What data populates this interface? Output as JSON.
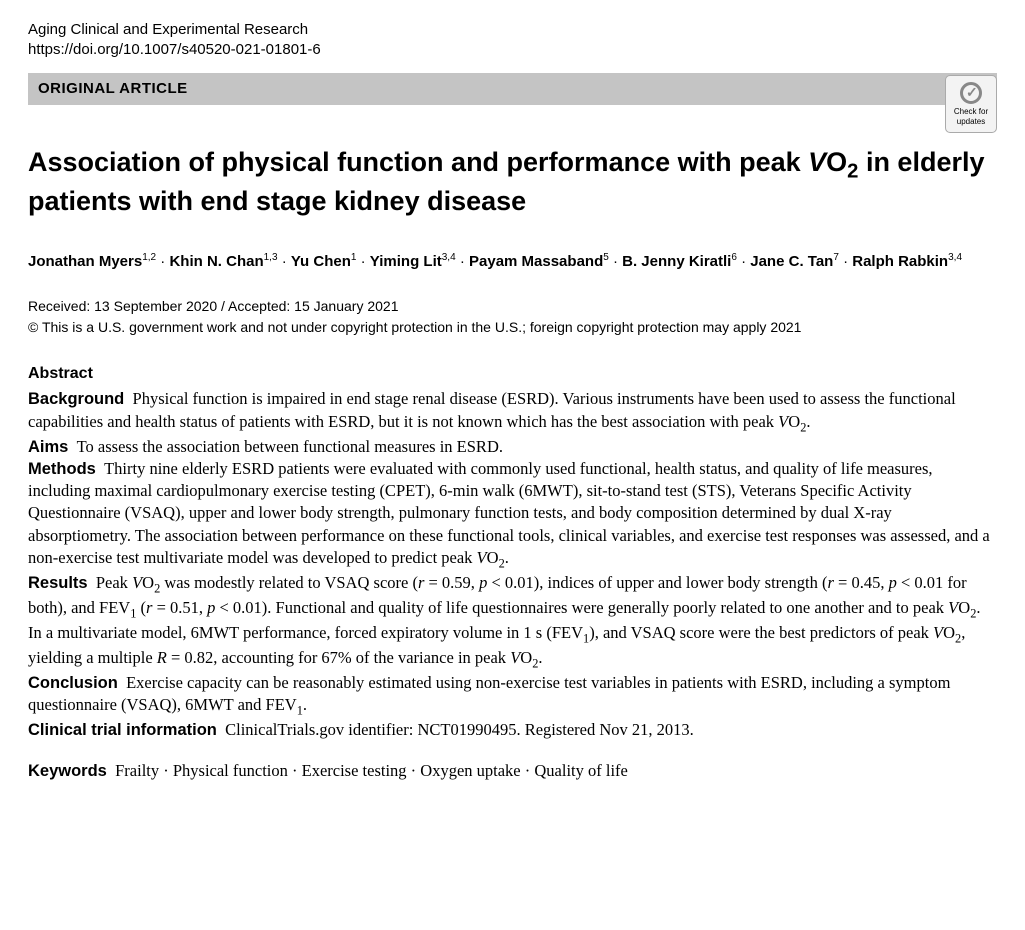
{
  "journal": {
    "name": "Aging Clinical and Experimental Research",
    "doi": "https://doi.org/10.1007/s40520-021-01801-6"
  },
  "article_type": "ORIGINAL ARTICLE",
  "check_updates_label": "Check for updates",
  "title_line1": "Association of physical function and performance with peak ",
  "title_vo2": "VO",
  "title_line2": " in elderly patients with end stage kidney disease",
  "authors": [
    {
      "name": "Jonathan Myers",
      "aff": "1,2"
    },
    {
      "name": "Khin N. Chan",
      "aff": "1,3"
    },
    {
      "name": "Yu Chen",
      "aff": "1"
    },
    {
      "name": "Yiming Lit",
      "aff": "3,4"
    },
    {
      "name": "Payam Massaband",
      "aff": "5"
    },
    {
      "name": "B. Jenny Kiratli",
      "aff": "6"
    },
    {
      "name": "Jane C. Tan",
      "aff": "7"
    },
    {
      "name": "Ralph Rabkin",
      "aff": "3,4"
    }
  ],
  "dates": {
    "received": "Received: 13 September 2020",
    "accepted": "Accepted: 15 January 2021"
  },
  "copyright": "© This is a U.S. government work and not under copyright protection in the U.S.; foreign copyright protection may apply 2021",
  "abstract_heading": "Abstract",
  "abstract": {
    "background_label": "Background",
    "background_text_pre": "Physical function is impaired in end stage renal disease (ESRD). Various instruments have been used to assess the functional capabilities and health status of patients with ESRD, but it is not known which has the best association with peak ",
    "aims_label": "Aims",
    "aims_text": "To assess the association between functional measures in ESRD.",
    "methods_label": "Methods",
    "methods_text": "Thirty nine elderly ESRD patients were evaluated with commonly used functional, health status, and quality of life measures, including maximal cardiopulmonary exercise testing (CPET), 6-min walk (6MWT), sit-to-stand test (STS), Veterans Specific Activity Questionnaire (VSAQ), upper and lower body strength, pulmonary function tests, and body composition determined by dual X-ray absorptiometry. The association between performance on these functional tools, clinical variables, and exercise test responses was assessed, and a non-exercise test multivariate model was developed to predict peak ",
    "results_label": "Results",
    "results_pre": "Peak ",
    "results_mid1": " was modestly related to VSAQ score (",
    "results_r1": "r",
    "results_v1": " = 0.59, ",
    "results_p1": "p",
    "results_v1b": " < 0.01), indices of upper and lower body strength (",
    "results_r2": "r",
    "results_v2": " = 0.45, ",
    "results_p2": "p",
    "results_v2b": " < 0.01 for both), and FEV",
    "results_fev_sub": "1",
    "results_v3a": " (",
    "results_r3": "r",
    "results_v3": " = 0.51, ",
    "results_p3": "p",
    "results_v3b": " < 0.01). Functional and quality of life questionnaires were generally poorly related to one another and to peak ",
    "results_post": ". In a multivariate model, 6MWT performance, forced expiratory volume in 1 s (FEV",
    "results_post2": "), and VSAQ score were the best predictors of peak ",
    "results_post3": ", yielding a multiple ",
    "results_rmult": "R",
    "results_post4": " = 0.82, accounting for 67% of the variance in peak ",
    "conclusion_label": "Conclusion",
    "conclusion_text": "Exercise capacity can be reasonably estimated using non-exercise test variables in patients with ESRD, including a symptom questionnaire (VSAQ), 6MWT and FEV",
    "trial_label": "Clinical trial information",
    "trial_text": "ClinicalTrials.gov identifier: NCT01990495. Registered Nov 21, 2013."
  },
  "keywords_label": "Keywords",
  "keywords": "Frailty · Physical function · Exercise testing · Oxygen uptake · Quality of life",
  "vo2_v": "V",
  "vo2_o": "O",
  "vo2_2": "2",
  "period": ".",
  "sep": " · "
}
